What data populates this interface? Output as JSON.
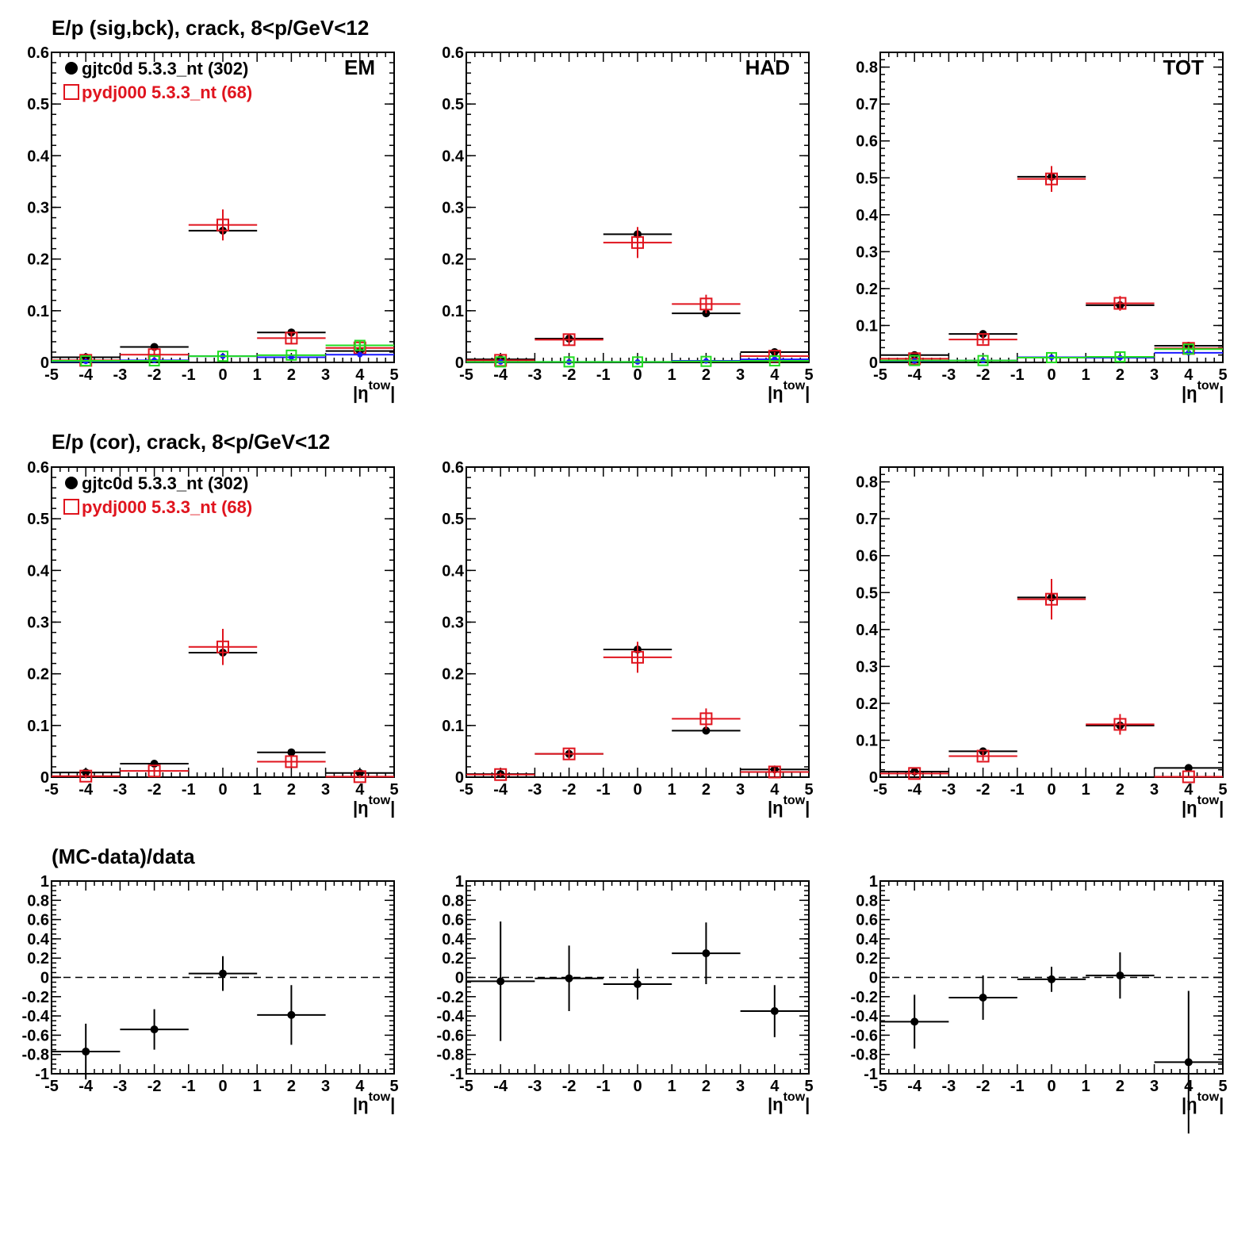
{
  "colors": {
    "data": "#000000",
    "mc": "#e0141e",
    "signal": "#1a1aff",
    "background": "#22dd22",
    "mc_background": "#800080",
    "dashed_zero": "#000000"
  },
  "rows": [
    {
      "title": "E/p (sig,bck), crack,  8<p/GeV<12"
    },
    {
      "title": "E/p (cor), crack,  8<p/GeV<12"
    },
    {
      "title": "(MC-data)/data"
    }
  ],
  "legend": {
    "data_label": "gjtc0d 5.3.3_nt (302)",
    "mc_label": "pydj000 5.3.3_nt (68)"
  },
  "x_axis": {
    "label_main": "|η",
    "label_sup": "tow",
    "label_end": "|",
    "range": [
      -5,
      5
    ],
    "ticks": [
      -5,
      -4,
      -3,
      -2,
      -1,
      0,
      1,
      2,
      3,
      4,
      5
    ]
  },
  "chart_data": [
    {
      "type": "scatter",
      "row": 0,
      "col": 0,
      "label": "EM",
      "xlim": [
        -5,
        5
      ],
      "ylim": [
        0,
        0.6
      ],
      "yticks": [
        0,
        0.1,
        0.2,
        0.3,
        0.4,
        0.5,
        0.6
      ],
      "ytick_labels": [
        "0",
        "0.1",
        "0.2",
        "0.3",
        "0.4",
        "0.5",
        "0.6"
      ],
      "series": [
        {
          "role": "data",
          "x": [
            -4,
            -2,
            0,
            2,
            4
          ],
          "y": [
            0.01,
            0.03,
            0.255,
            0.058,
            0.022
          ],
          "yerr": [
            0.003,
            0.004,
            0.012,
            0.006,
            0.004
          ]
        },
        {
          "role": "mc",
          "x": [
            -4,
            -2,
            0,
            2,
            4
          ],
          "y": [
            0.004,
            0.015,
            0.266,
            0.047,
            0.028
          ],
          "yerr": [
            0.005,
            0.01,
            0.03,
            0.012,
            0.01
          ]
        },
        {
          "role": "signal",
          "x": [
            -4,
            -2,
            0,
            2,
            4
          ],
          "y": [
            0.002,
            0.004,
            0.012,
            0.01,
            0.015
          ],
          "yerr": [
            0,
            0,
            0,
            0,
            0
          ]
        },
        {
          "role": "background",
          "x": [
            -4,
            -2,
            0,
            2,
            4
          ],
          "y": [
            0.003,
            0.003,
            0.012,
            0.014,
            0.033
          ],
          "yerr": [
            0,
            0,
            0,
            0,
            0.008
          ]
        }
      ]
    },
    {
      "type": "scatter",
      "row": 0,
      "col": 1,
      "label": "HAD",
      "xlim": [
        -5,
        5
      ],
      "ylim": [
        0,
        0.6
      ],
      "yticks": [
        0,
        0.1,
        0.2,
        0.3,
        0.4,
        0.5,
        0.6
      ],
      "ytick_labels": [
        "0",
        "0.1",
        "0.2",
        "0.3",
        "0.4",
        "0.5",
        "0.6"
      ],
      "series": [
        {
          "role": "data",
          "x": [
            -4,
            -2,
            0,
            2,
            4
          ],
          "y": [
            0.006,
            0.046,
            0.248,
            0.095,
            0.02
          ],
          "yerr": [
            0.003,
            0.005,
            0.012,
            0.007,
            0.004
          ]
        },
        {
          "role": "mc",
          "x": [
            -4,
            -2,
            0,
            2,
            4
          ],
          "y": [
            0.004,
            0.044,
            0.232,
            0.113,
            0.012
          ],
          "yerr": [
            0.005,
            0.01,
            0.03,
            0.018,
            0.008
          ]
        },
        {
          "role": "signal",
          "x": [
            -4,
            -2,
            0,
            2,
            4
          ],
          "y": [
            0.001,
            0.001,
            0.001,
            0.003,
            0.006
          ],
          "yerr": [
            0,
            0,
            0,
            0,
            0
          ]
        },
        {
          "role": "background",
          "x": [
            -4,
            -2,
            0,
            2,
            4
          ],
          "y": [
            0.001,
            0.001,
            0.001,
            0.002,
            0.003
          ],
          "yerr": [
            0,
            0,
            0,
            0,
            0
          ]
        }
      ]
    },
    {
      "type": "scatter",
      "row": 0,
      "col": 2,
      "label": "TOT",
      "xlim": [
        -5,
        5
      ],
      "ylim": [
        0,
        0.84
      ],
      "yticks": [
        0,
        0.1,
        0.2,
        0.3,
        0.4,
        0.5,
        0.6,
        0.7,
        0.8
      ],
      "ytick_labels": [
        "0",
        "0.1",
        "0.2",
        "0.3",
        "0.4",
        "0.5",
        "0.6",
        "0.7",
        "0.8"
      ],
      "series": [
        {
          "role": "data",
          "x": [
            -4,
            -2,
            0,
            2,
            4
          ],
          "y": [
            0.02,
            0.077,
            0.503,
            0.155,
            0.045
          ],
          "yerr": [
            0.004,
            0.006,
            0.015,
            0.01,
            0.005
          ]
        },
        {
          "role": "mc",
          "x": [
            -4,
            -2,
            0,
            2,
            4
          ],
          "y": [
            0.01,
            0.062,
            0.497,
            0.16,
            0.038
          ],
          "yerr": [
            0.006,
            0.012,
            0.035,
            0.02,
            0.012
          ]
        },
        {
          "role": "signal",
          "x": [
            -4,
            -2,
            0,
            2,
            4
          ],
          "y": [
            0.004,
            0.005,
            0.014,
            0.013,
            0.026
          ],
          "yerr": [
            0,
            0,
            0,
            0,
            0
          ]
        },
        {
          "role": "background",
          "x": [
            -4,
            -2,
            0,
            2,
            4
          ],
          "y": [
            0.005,
            0.005,
            0.013,
            0.015,
            0.036
          ],
          "yerr": [
            0,
            0,
            0,
            0,
            0.008
          ]
        }
      ]
    },
    {
      "type": "scatter",
      "row": 1,
      "col": 0,
      "label": "",
      "xlim": [
        -5,
        5
      ],
      "ylim": [
        0,
        0.6
      ],
      "yticks": [
        0,
        0.1,
        0.2,
        0.3,
        0.4,
        0.5,
        0.6
      ],
      "ytick_labels": [
        "0",
        "0.1",
        "0.2",
        "0.3",
        "0.4",
        "0.5",
        "0.6"
      ],
      "series": [
        {
          "role": "data",
          "x": [
            -4,
            -2,
            0,
            2,
            4
          ],
          "y": [
            0.009,
            0.026,
            0.241,
            0.048,
            0.008
          ],
          "yerr": [
            0.003,
            0.004,
            0.012,
            0.005,
            0.003
          ]
        },
        {
          "role": "mc",
          "x": [
            -4,
            -2,
            0,
            2,
            4
          ],
          "y": [
            0.002,
            0.012,
            0.252,
            0.03,
            0.001
          ],
          "yerr": [
            0.004,
            0.008,
            0.035,
            0.01,
            0.003
          ]
        }
      ]
    },
    {
      "type": "scatter",
      "row": 1,
      "col": 1,
      "label": "",
      "xlim": [
        -5,
        5
      ],
      "ylim": [
        0,
        0.6
      ],
      "yticks": [
        0,
        0.1,
        0.2,
        0.3,
        0.4,
        0.5,
        0.6
      ],
      "ytick_labels": [
        "0",
        "0.1",
        "0.2",
        "0.3",
        "0.4",
        "0.5",
        "0.6"
      ],
      "series": [
        {
          "role": "data",
          "x": [
            -4,
            -2,
            0,
            2,
            4
          ],
          "y": [
            0.006,
            0.045,
            0.247,
            0.09,
            0.015
          ],
          "yerr": [
            0.003,
            0.005,
            0.012,
            0.007,
            0.004
          ]
        },
        {
          "role": "mc",
          "x": [
            -4,
            -2,
            0,
            2,
            4
          ],
          "y": [
            0.005,
            0.045,
            0.232,
            0.113,
            0.01
          ],
          "yerr": [
            0.004,
            0.01,
            0.03,
            0.02,
            0.008
          ]
        }
      ]
    },
    {
      "type": "scatter",
      "row": 1,
      "col": 2,
      "label": "",
      "xlim": [
        -5,
        5
      ],
      "ylim": [
        0,
        0.84
      ],
      "yticks": [
        0,
        0.1,
        0.2,
        0.3,
        0.4,
        0.5,
        0.6,
        0.7,
        0.8
      ],
      "ytick_labels": [
        "0",
        "0.1",
        "0.2",
        "0.3",
        "0.4",
        "0.5",
        "0.6",
        "0.7",
        "0.8"
      ],
      "series": [
        {
          "role": "data",
          "x": [
            -4,
            -2,
            0,
            2,
            4
          ],
          "y": [
            0.015,
            0.07,
            0.487,
            0.14,
            0.025
          ],
          "yerr": [
            0.004,
            0.006,
            0.015,
            0.01,
            0.004
          ]
        },
        {
          "role": "mc",
          "x": [
            -4,
            -2,
            0,
            2,
            4
          ],
          "y": [
            0.01,
            0.057,
            0.482,
            0.143,
            0.001
          ],
          "yerr": [
            0.005,
            0.012,
            0.055,
            0.028,
            0.003
          ]
        }
      ]
    },
    {
      "type": "scatter",
      "row": 2,
      "col": 0,
      "label": "",
      "xlim": [
        -5,
        5
      ],
      "ylim": [
        -1,
        1
      ],
      "zero_line": true,
      "yticks": [
        -1,
        -0.8,
        -0.6,
        -0.4,
        -0.2,
        0,
        0.2,
        0.4,
        0.6,
        0.8,
        1
      ],
      "ytick_labels": [
        "-1",
        "-0.8",
        "-0.6",
        "-0.4",
        "-0.2",
        "0",
        "0.2",
        "0.4",
        "0.6",
        "0.8",
        "1"
      ],
      "series": [
        {
          "role": "ratio",
          "x": [
            -4,
            -2,
            0,
            2
          ],
          "y": [
            -0.77,
            -0.54,
            0.04,
            -0.39
          ],
          "yerr": [
            0.29,
            0.21,
            0.18,
            0.31
          ]
        }
      ]
    },
    {
      "type": "scatter",
      "row": 2,
      "col": 1,
      "label": "",
      "xlim": [
        -5,
        5
      ],
      "ylim": [
        -1,
        1
      ],
      "zero_line": true,
      "yticks": [
        -1,
        -0.8,
        -0.6,
        -0.4,
        -0.2,
        0,
        0.2,
        0.4,
        0.6,
        0.8,
        1
      ],
      "ytick_labels": [
        "-1",
        "-0.8",
        "-0.6",
        "-0.4",
        "-0.2",
        "0",
        "0.2",
        "0.4",
        "0.6",
        "0.8",
        "1"
      ],
      "series": [
        {
          "role": "ratio",
          "x": [
            -4,
            -2,
            0,
            2,
            4
          ],
          "y": [
            -0.04,
            -0.01,
            -0.07,
            0.25,
            -0.35
          ],
          "yerr": [
            0.62,
            0.34,
            0.16,
            0.32,
            0.27
          ]
        }
      ]
    },
    {
      "type": "scatter",
      "row": 2,
      "col": 2,
      "label": "",
      "xlim": [
        -5,
        5
      ],
      "ylim": [
        -1,
        1
      ],
      "zero_line": true,
      "yticks": [
        -1,
        -0.8,
        -0.6,
        -0.4,
        -0.2,
        0,
        0.2,
        0.4,
        0.6,
        0.8,
        1
      ],
      "ytick_labels": [
        "-1",
        "-0.8",
        "-0.6",
        "-0.4",
        "-0.2",
        "0",
        "0.2",
        "0.4",
        "0.6",
        "0.8",
        "1"
      ],
      "series": [
        {
          "role": "ratio",
          "x": [
            -4,
            -2,
            0,
            2,
            4
          ],
          "y": [
            -0.46,
            -0.21,
            -0.02,
            0.02,
            -0.88
          ],
          "yerr": [
            0.28,
            0.23,
            0.13,
            0.24,
            0.74
          ]
        }
      ]
    }
  ]
}
